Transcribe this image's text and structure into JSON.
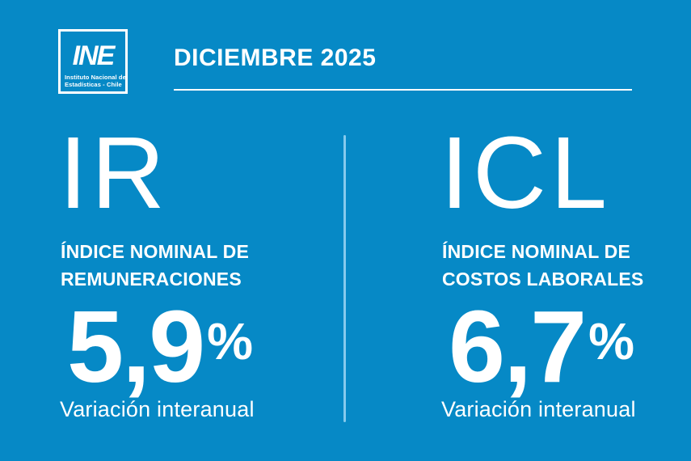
{
  "theme": {
    "background_color": "#0689c6",
    "text_color": "#ffffff",
    "divider_color": "#85caed"
  },
  "header": {
    "period_label": "DICIEMBRE 2025",
    "logo": {
      "wordmark": "INE",
      "subtitle_line1": "Instituto Nacional de",
      "subtitle_line2": "Estadísticas - Chile"
    }
  },
  "indicators": [
    {
      "acronym": "IR",
      "name_line1": "ÍNDICE NOMINAL DE",
      "name_line2": "REMUNERACIONES",
      "value": "5,9",
      "unit": "%",
      "caption": "Variación interanual"
    },
    {
      "acronym": "ICL",
      "name_line1": "ÍNDICE NOMINAL DE",
      "name_line2": "COSTOS LABORALES",
      "value": "6,7",
      "unit": "%",
      "caption": "Variación interanual"
    }
  ],
  "chart_data": {
    "type": "table",
    "title": "DICIEMBRE 2025",
    "categories": [
      "IR — Índice Nominal de Remuneraciones",
      "ICL — Índice Nominal de Costos Laborales"
    ],
    "values": [
      5.9,
      6.7
    ],
    "unit": "%",
    "note": "Variación interanual",
    "source": "INE — Instituto Nacional de Estadísticas - Chile"
  }
}
